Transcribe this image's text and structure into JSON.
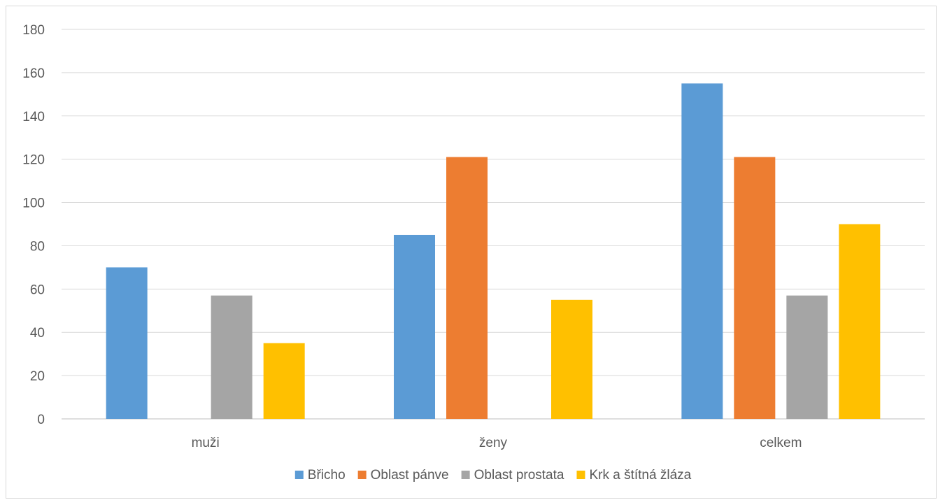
{
  "chart_data": {
    "type": "bar",
    "categories": [
      "muži",
      "ženy",
      "celkem"
    ],
    "series": [
      {
        "name": "Břicho",
        "color": "#5B9BD5",
        "values": [
          70,
          85,
          155
        ]
      },
      {
        "name": "Oblast pánve",
        "color": "#ED7D31",
        "values": [
          0,
          121,
          121
        ]
      },
      {
        "name": "Oblast prostata",
        "color": "#A5A5A5",
        "values": [
          57,
          0,
          57
        ]
      },
      {
        "name": "Krk a štítná žláza",
        "color": "#FFC000",
        "values": [
          35,
          55,
          90
        ]
      }
    ],
    "ylim": [
      0,
      180
    ],
    "yticks": [
      0,
      20,
      40,
      60,
      80,
      100,
      120,
      140,
      160,
      180
    ],
    "grid": true,
    "legend_position": "bottom"
  }
}
